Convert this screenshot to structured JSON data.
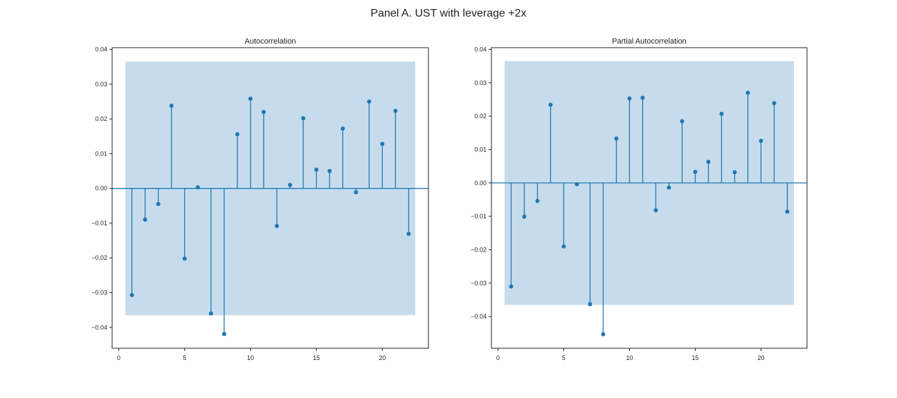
{
  "figure": {
    "suptitle": "Panel A. UST with leverage +2x"
  },
  "colors": {
    "stem": "#1f77b4",
    "band": "#c6dcec",
    "axis": "#222222"
  },
  "chart_data": [
    {
      "type": "stem",
      "title": "Autocorrelation",
      "xlabel": "",
      "ylabel": "",
      "xlim": [
        -0.5,
        23.5
      ],
      "ylim": [
        -0.046,
        0.0405
      ],
      "xticks": [
        0,
        5,
        10,
        15,
        20
      ],
      "yticks": [
        -0.04,
        -0.03,
        -0.02,
        -0.01,
        0.0,
        0.01,
        0.02,
        0.03,
        0.04
      ],
      "ytick_labels": [
        "−0.04",
        "−0.03",
        "−0.02",
        "−0.01",
        "0.00",
        "0.01",
        "0.02",
        "0.03",
        "0.04"
      ],
      "xtick_labels": [
        "0",
        "5",
        "10",
        "15",
        "20"
      ],
      "confidence_band": {
        "x_start": 0.5,
        "x_end": 22.5,
        "upper": 0.0365,
        "lower": -0.0365
      },
      "lags": [
        1,
        2,
        3,
        4,
        5,
        6,
        7,
        8,
        9,
        10,
        11,
        12,
        13,
        14,
        15,
        16,
        17,
        18,
        19,
        20,
        21,
        22
      ],
      "values": [
        -0.0307,
        -0.009,
        -0.0045,
        0.0238,
        -0.0202,
        0.0003,
        -0.036,
        -0.0419,
        0.0156,
        0.0258,
        0.022,
        -0.0108,
        0.001,
        0.0202,
        0.0054,
        0.005,
        0.0172,
        -0.0011,
        0.025,
        0.0128,
        0.0223,
        -0.0131
      ],
      "grid": false
    },
    {
      "type": "stem",
      "title": "Partial Autocorrelation",
      "xlabel": "",
      "ylabel": "",
      "xlim": [
        -0.5,
        23.5
      ],
      "ylim": [
        -0.0495,
        0.0405
      ],
      "xticks": [
        0,
        5,
        10,
        15,
        20
      ],
      "yticks": [
        -0.04,
        -0.03,
        -0.02,
        -0.01,
        0.0,
        0.01,
        0.02,
        0.03,
        0.04
      ],
      "ytick_labels": [
        "−0.04",
        "−0.03",
        "−0.02",
        "−0.01",
        "0.00",
        "0.01",
        "0.02",
        "0.03",
        "0.04"
      ],
      "xtick_labels": [
        "0",
        "5",
        "10",
        "15",
        "20"
      ],
      "confidence_band": {
        "x_start": 0.5,
        "x_end": 22.5,
        "upper": 0.0365,
        "lower": -0.0365
      },
      "lags": [
        1,
        2,
        3,
        4,
        5,
        6,
        7,
        8,
        9,
        10,
        11,
        12,
        13,
        14,
        15,
        16,
        17,
        18,
        19,
        20,
        21,
        22
      ],
      "values": [
        -0.031,
        -0.0101,
        -0.0054,
        0.0234,
        -0.019,
        -0.0004,
        -0.0363,
        -0.0453,
        0.0133,
        0.0253,
        0.0255,
        -0.0082,
        -0.0014,
        0.0185,
        0.0033,
        0.0063,
        0.0207,
        0.0032,
        0.027,
        0.0126,
        0.0239,
        -0.0086
      ],
      "grid": false
    }
  ]
}
